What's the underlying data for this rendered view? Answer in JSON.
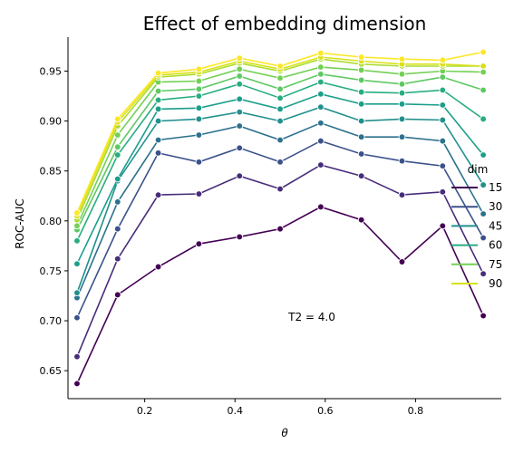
{
  "chart_data": {
    "type": "line",
    "title": "Effect of embedding dimension",
    "xlabel": "θ",
    "ylabel": "ROC-AUC",
    "xlim": [
      0.03,
      0.99
    ],
    "ylim": [
      0.622,
      0.984
    ],
    "xticks": [
      0.2,
      0.4,
      0.6,
      0.8
    ],
    "xtick_labels": [
      "0.2",
      "0.4",
      "0.6",
      "0.8"
    ],
    "yticks": [
      0.65,
      0.7,
      0.75,
      0.8,
      0.85,
      0.9,
      0.95
    ],
    "ytick_labels": [
      "0.65",
      "0.70",
      "0.75",
      "0.80",
      "0.85",
      "0.90",
      "0.95"
    ],
    "grid": false,
    "annotation": "T2 = 4.0",
    "legend": {
      "title": "dim",
      "placement": "right"
    },
    "x": [
      0.05,
      0.14,
      0.23,
      0.32,
      0.41,
      0.5,
      0.59,
      0.68,
      0.77,
      0.86,
      0.95
    ],
    "series": [
      {
        "name": "15",
        "color": "#440154",
        "values": [
          0.637,
          0.726,
          0.754,
          0.777,
          0.784,
          0.792,
          0.814,
          0.801,
          0.759,
          0.795,
          0.705
        ]
      },
      {
        "name": "",
        "color": "#472c7a",
        "values": [
          0.664,
          0.762,
          0.826,
          0.827,
          0.845,
          0.832,
          0.856,
          0.845,
          0.826,
          0.829,
          0.747
        ]
      },
      {
        "name": "30",
        "color": "#3b518b",
        "values": [
          0.703,
          0.792,
          0.868,
          0.859,
          0.873,
          0.859,
          0.88,
          0.867,
          0.86,
          0.855,
          0.783
        ]
      },
      {
        "name": "",
        "color": "#2c718e",
        "values": [
          0.723,
          0.819,
          0.881,
          0.886,
          0.895,
          0.881,
          0.898,
          0.884,
          0.884,
          0.88,
          0.807
        ]
      },
      {
        "name": "45",
        "color": "#21908d",
        "values": [
          0.728,
          0.84,
          0.9,
          0.902,
          0.909,
          0.9,
          0.914,
          0.9,
          0.902,
          0.901,
          0.836
        ]
      },
      {
        "name": "",
        "color": "#1b9e8a",
        "values": [
          0.757,
          0.842,
          0.912,
          0.913,
          0.922,
          0.912,
          0.927,
          0.917,
          0.917,
          0.916,
          0.866
        ]
      },
      {
        "name": "60",
        "color": "#27ad81",
        "values": [
          0.78,
          0.866,
          0.921,
          0.925,
          0.937,
          0.923,
          0.939,
          0.929,
          0.928,
          0.931,
          0.902
        ]
      },
      {
        "name": "",
        "color": "#5ec962",
        "values": [
          0.791,
          0.874,
          0.93,
          0.932,
          0.945,
          0.932,
          0.947,
          0.941,
          0.937,
          0.944,
          0.931
        ]
      },
      {
        "name": "75",
        "color": "#74d055",
        "values": [
          0.795,
          0.886,
          0.939,
          0.94,
          0.952,
          0.943,
          0.954,
          0.951,
          0.947,
          0.95,
          0.949
        ]
      },
      {
        "name": "",
        "color": "#addc30",
        "values": [
          0.801,
          0.895,
          0.944,
          0.947,
          0.958,
          0.95,
          0.962,
          0.957,
          0.955,
          0.955,
          0.955
        ]
      },
      {
        "name": "90",
        "color": "#d8e219",
        "values": [
          0.805,
          0.899,
          0.946,
          0.949,
          0.96,
          0.952,
          0.964,
          0.96,
          0.957,
          0.957,
          0.955
        ]
      },
      {
        "name": "",
        "color": "#fde725",
        "values": [
          0.808,
          0.902,
          0.948,
          0.952,
          0.963,
          0.955,
          0.968,
          0.964,
          0.962,
          0.961,
          0.969
        ]
      }
    ]
  }
}
